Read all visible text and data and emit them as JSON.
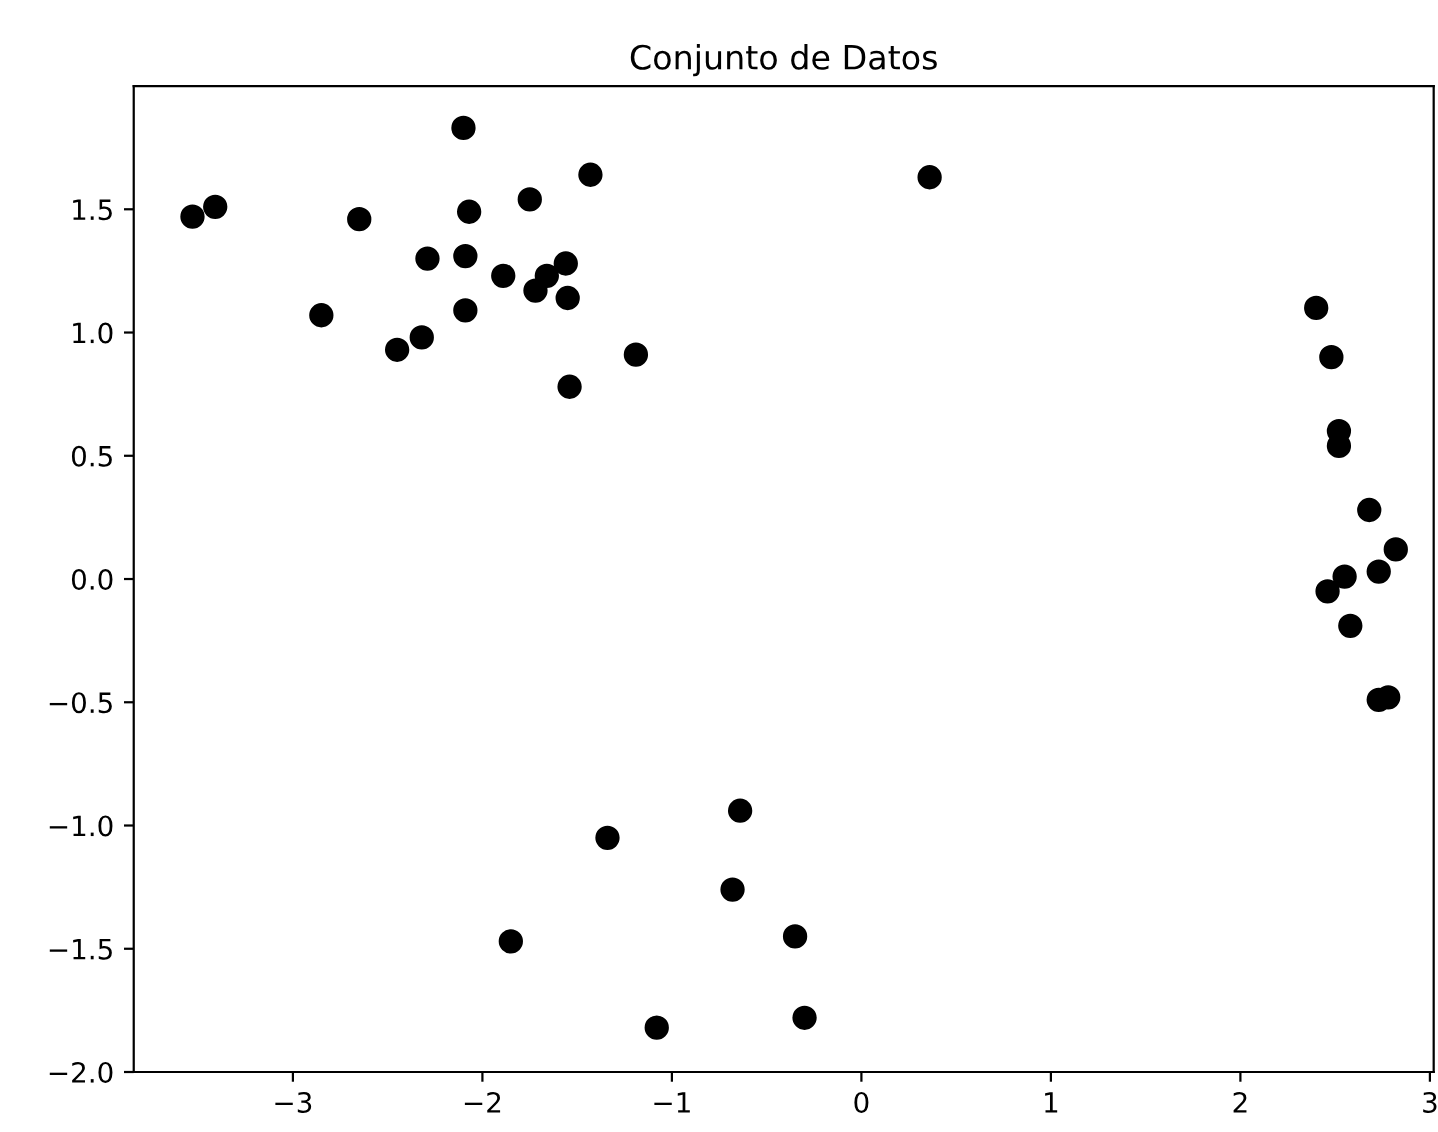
{
  "chart_data": {
    "type": "scatter",
    "title": "Conjunto de Datos",
    "marker": "circle",
    "grid": false,
    "x": [
      -3.53,
      -3.41,
      -2.65,
      -2.1,
      -1.43,
      -2.07,
      -1.75,
      -2.29,
      -2.09,
      -1.89,
      -1.66,
      -1.56,
      -1.72,
      -1.55,
      -2.85,
      -2.09,
      -2.32,
      -2.45,
      -1.19,
      -1.54,
      0.36,
      -0.64,
      -1.34,
      -0.68,
      -1.85,
      -0.35,
      -1.08,
      -0.3,
      2.4,
      2.48,
      2.52,
      2.52,
      2.68,
      2.82,
      2.73,
      2.55,
      2.46,
      2.58,
      2.73,
      2.78
    ],
    "series": [
      {
        "color": "#000000",
        "values": [
          1.47,
          1.51,
          1.46,
          1.83,
          1.64,
          1.49,
          1.54,
          1.3,
          1.31,
          1.23,
          1.23,
          1.28,
          1.17,
          1.14,
          1.07,
          1.09,
          0.98,
          0.93,
          0.91,
          0.78,
          1.63,
          -0.94,
          -1.05,
          -1.26,
          -1.47,
          -1.45,
          -1.82,
          -1.78,
          1.1,
          0.9,
          0.6,
          0.54,
          0.28,
          0.12,
          0.03,
          0.01,
          -0.05,
          -0.19,
          -0.49,
          -0.48
        ]
      }
    ],
    "xlim": [
      -3.84,
      3.02
    ],
    "ylim": [
      -2.0,
      2.0
    ],
    "xticks": [
      {
        "value": -3,
        "label": "−3"
      },
      {
        "value": -2,
        "label": "−2"
      },
      {
        "value": -1,
        "label": "−1"
      },
      0,
      1,
      2,
      3
    ],
    "yticks": [
      {
        "value": -2.0,
        "label": "−2.0"
      },
      {
        "value": -1.5,
        "label": "−1.5"
      },
      {
        "value": -1.0,
        "label": "−1.0"
      },
      {
        "value": -0.5,
        "label": "−0.5"
      },
      {
        "value": 0.0,
        "label": "0.0"
      },
      {
        "value": 0.5,
        "label": "0.5"
      },
      {
        "value": 1.0,
        "label": "1.0"
      },
      {
        "value": 1.5,
        "label": "1.5"
      }
    ]
  }
}
